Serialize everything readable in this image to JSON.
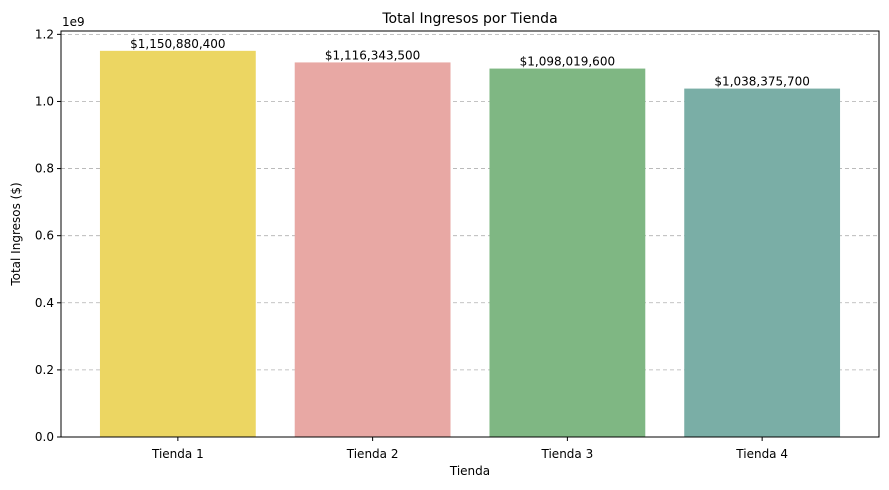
{
  "chart_data": {
    "type": "bar",
    "title": "Total Ingresos por Tienda",
    "xlabel": "Tienda",
    "ylabel": "Total Ingresos ($)",
    "offset_label": "1e9",
    "categories": [
      "Tienda 1",
      "Tienda 2",
      "Tienda 3",
      "Tienda 4"
    ],
    "values": [
      1150880400,
      1116343500,
      1098019600,
      1038375700
    ],
    "value_labels": [
      "$1,150,880,400",
      "$1,116,343,500",
      "$1,098,019,600",
      "$1,038,375,700"
    ],
    "colors": [
      "#ecd662",
      "#e8a8a4",
      "#7fb783",
      "#7aaea6"
    ],
    "ylim": [
      0,
      1.21
    ],
    "yticks": [
      0.0,
      0.2,
      0.4,
      0.6,
      0.8,
      1.0,
      1.2
    ],
    "ytick_labels": [
      "0.0",
      "0.2",
      "0.4",
      "0.6",
      "0.8",
      "1.0",
      "1.2"
    ],
    "y_scale": 1000000000,
    "grid": "y-dashed",
    "legend": "none"
  }
}
